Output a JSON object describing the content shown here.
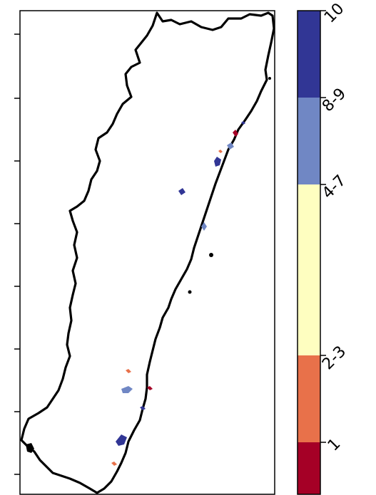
{
  "map": {
    "ticks_left_count": 8,
    "boundary_color": "#000000",
    "frame_color": "#000000"
  },
  "colorbar": {
    "segments": [
      {
        "label": "1",
        "color": "#a50026"
      },
      {
        "label": "2-3",
        "color": "#e8714a"
      },
      {
        "label": "4-7",
        "color": "#fefec0"
      },
      {
        "label": "8-9",
        "color": "#7087c4"
      },
      {
        "label": "10",
        "color": "#313695"
      }
    ]
  }
}
